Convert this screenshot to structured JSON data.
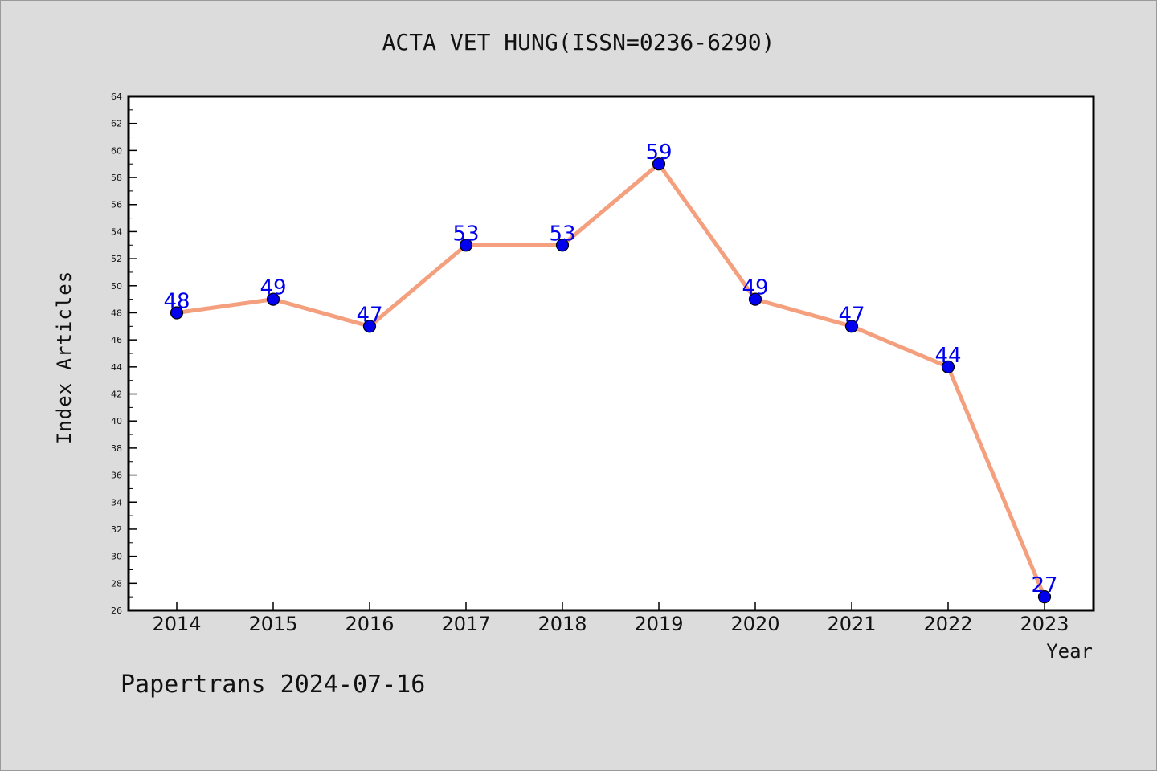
{
  "chart_data": {
    "type": "line",
    "title": "ACTA VET HUNG(ISSN=0236-6290)",
    "xlabel": "Year",
    "ylabel": "Index Articles",
    "categories": [
      "2014",
      "2015",
      "2016",
      "2017",
      "2018",
      "2019",
      "2020",
      "2021",
      "2022",
      "2023"
    ],
    "series": [
      {
        "values": [
          48,
          49,
          47,
          53,
          53,
          59,
          49,
          47,
          44,
          27
        ]
      }
    ],
    "ylim": [
      26,
      64
    ],
    "ytick_step": 2,
    "grid": false,
    "data_labels": true,
    "colors": {
      "line": "#f4a07e",
      "marker": "#0000ee",
      "label": "#0000ee"
    }
  },
  "footer": "Papertrans 2024-07-16"
}
